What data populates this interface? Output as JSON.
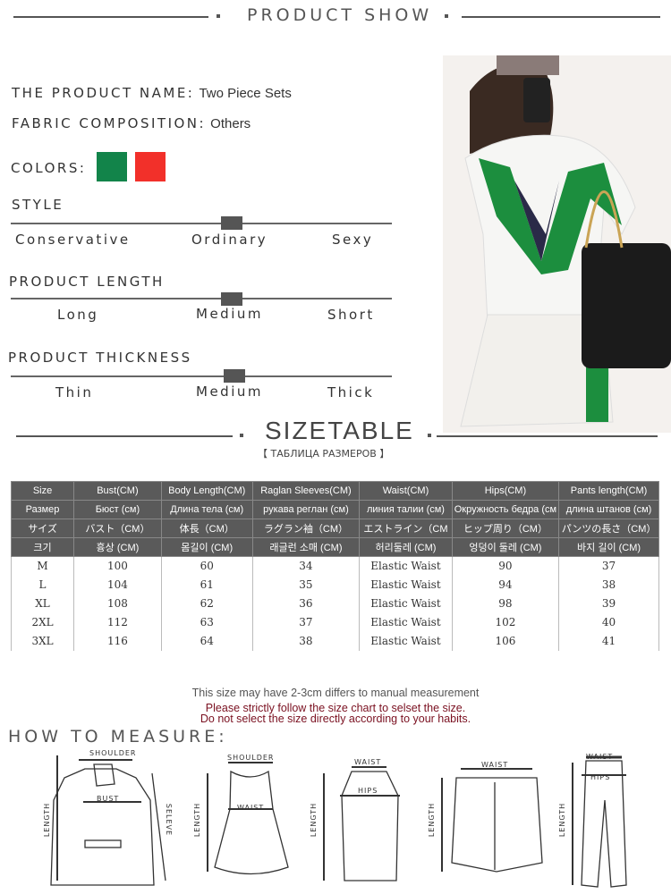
{
  "header": {
    "title": "PRODUCT SHOW"
  },
  "product": {
    "name_label": "THE PRODUCT NAME:",
    "name": "Two Piece Sets",
    "fabric_label": "FABRIC COMPOSITION:",
    "fabric": "Others",
    "colors_label": "COLORS:",
    "colors": [
      "#12844a",
      "#f2302a"
    ]
  },
  "style": {
    "label": "STYLE",
    "options": [
      "Conservative",
      "Ordinary",
      "Sexy"
    ],
    "selected": "Ordinary"
  },
  "length": {
    "label": "PRODUCT LENGTH",
    "options": [
      "Long",
      "Medium",
      "Short"
    ],
    "selected": "Medium"
  },
  "thickness": {
    "label": "PRODUCT THICKNESS",
    "options": [
      "Thin",
      "Medium",
      "Thick"
    ],
    "selected": "Medium"
  },
  "sizetable": {
    "title": "SIZETABLE",
    "subtitle": "【 ТАБЛИЦА РАЗМЕРОВ 】",
    "header_rows": [
      [
        "Size",
        "Bust(CM)",
        "Body Length(CM)",
        "Raglan Sleeves(CM)",
        "Waist(CM)",
        "Hips(CM)",
        "Pants length(CM)"
      ],
      [
        "Размер",
        "Бюст (см)",
        "Длина тела (см)",
        "рукава реглан (см)",
        "линия талии (см)",
        "Окружность бедра (см",
        "длина штанов (см)"
      ],
      [
        "サイズ",
        "バスト（CM）",
        "体長（CM）",
        "ラグラン袖（CM）",
        "エストライン（CM",
        "ヒップ周り（CM）",
        "パンツの長さ（CM）"
      ],
      [
        "크기",
        "흉상 (CM)",
        "몸길이 (CM)",
        "래글런 소매 (CM)",
        "허리둘레 (CM)",
        "엉덩이 둘레 (CM)",
        "바지 길이 (CM)"
      ]
    ],
    "rows": [
      [
        "M",
        "100",
        "60",
        "34",
        "Elastic Waist",
        "90",
        "37"
      ],
      [
        "L",
        "104",
        "61",
        "35",
        "Elastic Waist",
        "94",
        "38"
      ],
      [
        "XL",
        "108",
        "62",
        "36",
        "Elastic Waist",
        "98",
        "39"
      ],
      [
        "2XL",
        "112",
        "63",
        "37",
        "Elastic Waist",
        "102",
        "40"
      ],
      [
        "3XL",
        "116",
        "64",
        "38",
        "Elastic Waist",
        "106",
        "41"
      ]
    ]
  },
  "notes": {
    "line1": "This size may have 2-3cm differs to manual measurement",
    "line2": "Please strictly follow the size chart to selset the size.",
    "line3": "Do not select the size directly according to your habits."
  },
  "measure": {
    "title": "HOW TO MEASURE:",
    "labels": {
      "shoulder": "SHOULDER",
      "bust": "BUST",
      "length": "LENGTH",
      "sleeve": "SELEVE",
      "waist": "WAIST",
      "hips": "HIPS"
    }
  }
}
